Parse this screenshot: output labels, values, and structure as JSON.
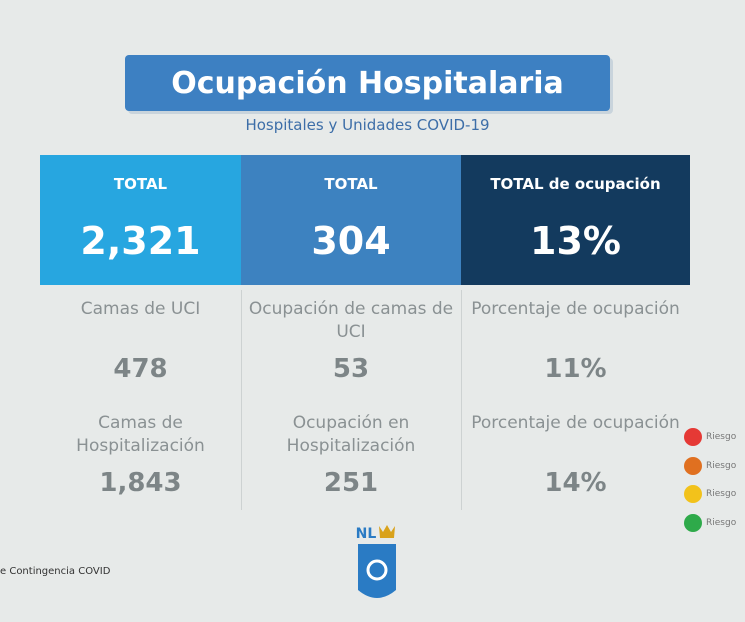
{
  "header": {
    "title": "Ocupación Hospitalaria",
    "subtitle": "Hospitales y Unidades COVID-19"
  },
  "table": {
    "header": [
      {
        "label": "TOTAL",
        "value": "2,321"
      },
      {
        "label": "TOTAL",
        "value": "304"
      },
      {
        "label": "TOTAL de ocupación",
        "value": "13%"
      }
    ],
    "rows": [
      [
        {
          "label": "Camas de UCI",
          "value": "478"
        },
        {
          "label": "Ocupación de camas de UCI",
          "value": "53"
        },
        {
          "label": "Porcentaje de ocupación",
          "value": "11%"
        }
      ],
      [
        {
          "label": "Camas de Hospitalización",
          "value": "1,843"
        },
        {
          "label": "Ocupación en Hospitalización",
          "value": "251"
        },
        {
          "label": "Porcentaje de ocupación",
          "value": "14%"
        }
      ]
    ]
  },
  "legend": [
    {
      "label": "Riesgo",
      "color": "#e53935"
    },
    {
      "label": "Riesgo",
      "color": "#e07020"
    },
    {
      "label": "Riesgo",
      "color": "#f2c21b"
    },
    {
      "label": "Riesgo",
      "color": "#2eaa4a"
    }
  ],
  "footer": {
    "source": "e Contingencia COVID",
    "logo": "NL"
  }
}
